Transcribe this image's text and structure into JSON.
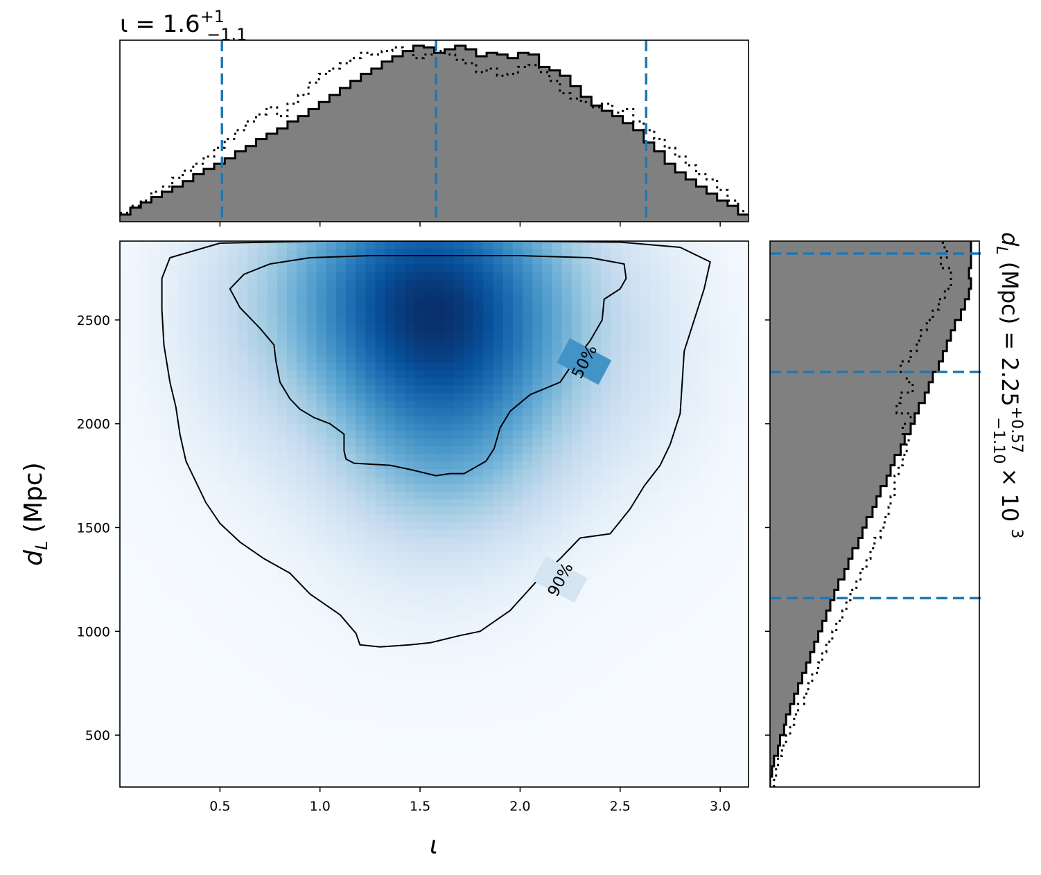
{
  "chart_data": {
    "type": "corner",
    "joint": {
      "type": "heatmap",
      "colormap": "Blues",
      "xlabel": "ι",
      "ylabel": "d_L (Mpc)",
      "xlim": [
        0.0,
        3.1416
      ],
      "ylim": [
        250,
        2880
      ],
      "xticks": [
        0.5,
        1.0,
        1.5,
        2.0,
        2.5,
        3.0
      ],
      "yticks": [
        500,
        1000,
        1500,
        2000,
        2500
      ],
      "density_blobs": [
        {
          "x": 1.38,
          "y": 2700,
          "sx": 0.55,
          "sy": 420,
          "w": 1.0
        },
        {
          "x": 1.72,
          "y": 2550,
          "sx": 0.5,
          "sy": 520,
          "w": 0.85
        },
        {
          "x": 1.6,
          "y": 2120,
          "sx": 0.5,
          "sy": 380,
          "w": 0.55
        },
        {
          "x": 1.6,
          "y": 1700,
          "sx": 0.4,
          "sy": 260,
          "w": 0.3
        },
        {
          "x": 1.55,
          "y": 1250,
          "sx": 0.45,
          "sy": 320,
          "w": 0.12
        },
        {
          "x": 0.55,
          "y": 2300,
          "sx": 0.3,
          "sy": 500,
          "w": 0.12
        },
        {
          "x": 2.7,
          "y": 2300,
          "sx": 0.3,
          "sy": 500,
          "w": 0.12
        }
      ],
      "contours": [
        {
          "label": "50%",
          "label_position": {
            "x": 2.32,
            "y": 2300
          },
          "path": [
            [
              1.17,
              1810
            ],
            [
              1.13,
              1830
            ],
            [
              1.12,
              1870
            ],
            [
              1.12,
              1950
            ],
            [
              1.05,
              2000
            ],
            [
              0.97,
              2030
            ],
            [
              0.9,
              2070
            ],
            [
              0.85,
              2120
            ],
            [
              0.8,
              2200
            ],
            [
              0.78,
              2300
            ],
            [
              0.77,
              2380
            ],
            [
              0.7,
              2460
            ],
            [
              0.6,
              2560
            ],
            [
              0.55,
              2650
            ],
            [
              0.62,
              2720
            ],
            [
              0.75,
              2770
            ],
            [
              0.95,
              2800
            ],
            [
              1.25,
              2810
            ],
            [
              1.6,
              2810
            ],
            [
              2.0,
              2810
            ],
            [
              2.35,
              2800
            ],
            [
              2.52,
              2770
            ],
            [
              2.53,
              2700
            ],
            [
              2.5,
              2650
            ],
            [
              2.42,
              2600
            ],
            [
              2.41,
              2500
            ],
            [
              2.35,
              2400
            ],
            [
              2.27,
              2300
            ],
            [
              2.2,
              2200
            ],
            [
              2.05,
              2140
            ],
            [
              1.95,
              2060
            ],
            [
              1.9,
              1980
            ],
            [
              1.87,
              1880
            ],
            [
              1.83,
              1820
            ],
            [
              1.72,
              1760
            ],
            [
              1.65,
              1760
            ],
            [
              1.58,
              1750
            ],
            [
              1.45,
              1780
            ],
            [
              1.35,
              1800
            ],
            [
              1.17,
              1810
            ]
          ]
        },
        {
          "label": "90%",
          "label_position": {
            "x": 2.2,
            "y": 1250
          },
          "path": [
            [
              1.3,
              925
            ],
            [
              1.2,
              935
            ],
            [
              1.18,
              990
            ],
            [
              1.1,
              1080
            ],
            [
              0.95,
              1180
            ],
            [
              0.85,
              1280
            ],
            [
              0.72,
              1350
            ],
            [
              0.6,
              1430
            ],
            [
              0.5,
              1520
            ],
            [
              0.43,
              1620
            ],
            [
              0.38,
              1720
            ],
            [
              0.33,
              1820
            ],
            [
              0.3,
              1950
            ],
            [
              0.28,
              2080
            ],
            [
              0.25,
              2200
            ],
            [
              0.22,
              2380
            ],
            [
              0.21,
              2550
            ],
            [
              0.21,
              2700
            ],
            [
              0.25,
              2800
            ],
            [
              0.5,
              2870
            ],
            [
              1.0,
              2880
            ],
            [
              1.5,
              2880
            ],
            [
              2.0,
              2880
            ],
            [
              2.5,
              2875
            ],
            [
              2.8,
              2850
            ],
            [
              2.95,
              2780
            ],
            [
              2.92,
              2650
            ],
            [
              2.87,
              2500
            ],
            [
              2.82,
              2350
            ],
            [
              2.81,
              2200
            ],
            [
              2.8,
              2050
            ],
            [
              2.75,
              1900
            ],
            [
              2.7,
              1800
            ],
            [
              2.62,
              1700
            ],
            [
              2.55,
              1590
            ],
            [
              2.45,
              1470
            ],
            [
              2.3,
              1450
            ],
            [
              2.2,
              1350
            ],
            [
              2.1,
              1260
            ],
            [
              1.95,
              1100
            ],
            [
              1.8,
              1000
            ],
            [
              1.7,
              980
            ],
            [
              1.55,
              945
            ],
            [
              1.45,
              935
            ],
            [
              1.3,
              925
            ]
          ]
        }
      ]
    },
    "top_marginal": {
      "type": "histogram",
      "parameter": "ι",
      "title": "ι = 1.6^{+1}_{−1.1}",
      "title_text": {
        "base": "ι = 1.6",
        "sup": "+1",
        "sub": "−1.1"
      },
      "xlim": [
        0.0,
        3.1416
      ],
      "quantile_lines": [
        0.51,
        1.58,
        2.63
      ],
      "bins": 60,
      "hist_filled": [
        0.04,
        0.08,
        0.11,
        0.14,
        0.17,
        0.2,
        0.23,
        0.27,
        0.3,
        0.33,
        0.36,
        0.4,
        0.43,
        0.47,
        0.5,
        0.53,
        0.57,
        0.6,
        0.64,
        0.68,
        0.72,
        0.76,
        0.8,
        0.84,
        0.87,
        0.91,
        0.94,
        0.97,
        1.0,
        0.99,
        0.96,
        0.98,
        1.0,
        0.98,
        0.94,
        0.96,
        0.95,
        0.93,
        0.96,
        0.95,
        0.88,
        0.86,
        0.83,
        0.77,
        0.71,
        0.66,
        0.63,
        0.6,
        0.56,
        0.52,
        0.45,
        0.4,
        0.33,
        0.28,
        0.24,
        0.2,
        0.16,
        0.12,
        0.09,
        0.04
      ],
      "hist_prior_dotted": [
        0.05,
        0.09,
        0.12,
        0.17,
        0.2,
        0.25,
        0.29,
        0.33,
        0.37,
        0.42,
        0.47,
        0.52,
        0.57,
        0.61,
        0.65,
        0.6,
        0.67,
        0.72,
        0.79,
        0.84,
        0.87,
        0.9,
        0.93,
        0.96,
        0.95,
        0.97,
        0.99,
        0.97,
        0.93,
        0.95,
        0.97,
        0.95,
        0.92,
        0.9,
        0.85,
        0.87,
        0.83,
        0.84,
        0.88,
        0.89,
        0.85,
        0.8,
        0.73,
        0.7,
        0.68,
        0.65,
        0.67,
        0.62,
        0.64,
        0.57,
        0.52,
        0.47,
        0.42,
        0.37,
        0.32,
        0.27,
        0.24,
        0.18,
        0.12,
        0.06
      ]
    },
    "right_marginal": {
      "type": "histogram",
      "orientation": "horizontal",
      "parameter": "d_L (Mpc)",
      "title": "d_L (Mpc) = 2.25^{+0.57}_{−1.10} × 10^3",
      "title_text": {
        "base": "d_L (Mpc) = 2.25",
        "sup": "+0.57",
        "sub": "−1.10",
        "suffix": "× 10^3"
      },
      "ylim": [
        250,
        2880
      ],
      "quantile_lines": [
        1160,
        2250,
        2820
      ],
      "bin_edges_start": 250,
      "bin_width": 50,
      "hist_filled": [
        0.0,
        0.01,
        0.02,
        0.04,
        0.05,
        0.07,
        0.08,
        0.1,
        0.12,
        0.14,
        0.16,
        0.18,
        0.2,
        0.22,
        0.24,
        0.26,
        0.28,
        0.3,
        0.32,
        0.34,
        0.37,
        0.39,
        0.41,
        0.44,
        0.46,
        0.48,
        0.51,
        0.53,
        0.55,
        0.58,
        0.6,
        0.62,
        0.65,
        0.67,
        0.7,
        0.72,
        0.74,
        0.77,
        0.79,
        0.81,
        0.84,
        0.86,
        0.88,
        0.9,
        0.92,
        0.95,
        0.97,
        0.99,
        1.0,
        0.99,
        1.0,
        1.0,
        1.0
      ],
      "hist_prior_dotted": [
        0.02,
        0.03,
        0.04,
        0.06,
        0.08,
        0.1,
        0.12,
        0.14,
        0.17,
        0.19,
        0.21,
        0.24,
        0.26,
        0.28,
        0.31,
        0.33,
        0.36,
        0.38,
        0.4,
        0.43,
        0.45,
        0.48,
        0.5,
        0.52,
        0.55,
        0.57,
        0.59,
        0.6,
        0.62,
        0.62,
        0.64,
        0.66,
        0.68,
        0.69,
        0.66,
        0.7,
        0.63,
        0.65,
        0.71,
        0.68,
        0.65,
        0.7,
        0.73,
        0.75,
        0.78,
        0.81,
        0.84,
        0.87,
        0.9,
        0.9,
        0.85,
        0.88,
        0.86
      ]
    },
    "colors": {
      "fill": "#808080",
      "edge": "#000000",
      "quantile": "#1f77b4"
    }
  }
}
